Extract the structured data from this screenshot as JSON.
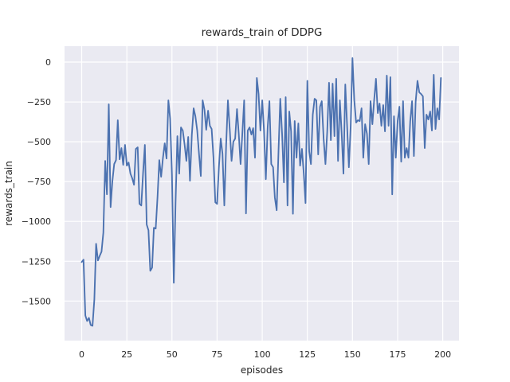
{
  "figure": {
    "title": "rewards_train of DDPG",
    "xlabel": "episodes",
    "ylabel": "rewards_train"
  },
  "colors": {
    "line": "#4C72B0",
    "axes_background": "#EAEAF2",
    "grid": "#FFFFFF",
    "figure_background": "#FFFFFF",
    "text": "#262626"
  },
  "chart_data": {
    "type": "line",
    "title": "rewards_train of DDPG",
    "xlabel": "episodes",
    "ylabel": "rewards_train",
    "legend": "none",
    "grid": true,
    "xlim": [
      -9.5,
      209
    ],
    "ylim": [
      -1748,
      100
    ],
    "x_start": 0,
    "x_step": 1,
    "xticks": {
      "values": [
        0,
        25,
        50,
        75,
        100,
        125,
        150,
        175,
        200
      ],
      "labels": [
        "0",
        "25",
        "50",
        "75",
        "100",
        "125",
        "150",
        "175",
        "200"
      ]
    },
    "yticks": {
      "values": [
        0,
        -250,
        -500,
        -750,
        -1000,
        -1250,
        -1500
      ],
      "labels": [
        "0",
        "−250",
        "−500",
        "−750",
        "−1000",
        "−1250",
        "−1500"
      ]
    },
    "values": [
      -1255,
      -1240,
      -1590,
      -1625,
      -1605,
      -1650,
      -1655,
      -1490,
      -1140,
      -1245,
      -1215,
      -1190,
      -1070,
      -620,
      -830,
      -265,
      -910,
      -750,
      -640,
      -615,
      -365,
      -610,
      -540,
      -645,
      -520,
      -650,
      -630,
      -700,
      -730,
      -770,
      -545,
      -535,
      -890,
      -900,
      -700,
      -520,
      -1020,
      -1055,
      -1310,
      -1290,
      -1040,
      -1045,
      -845,
      -615,
      -720,
      -600,
      -510,
      -605,
      -240,
      -355,
      -710,
      -1385,
      -885,
      -465,
      -700,
      -410,
      -430,
      -520,
      -620,
      -470,
      -745,
      -460,
      -290,
      -340,
      -430,
      -580,
      -715,
      -240,
      -300,
      -425,
      -305,
      -400,
      -420,
      -600,
      -880,
      -890,
      -660,
      -480,
      -575,
      -900,
      -520,
      -240,
      -420,
      -620,
      -500,
      -480,
      -295,
      -450,
      -640,
      -450,
      -240,
      -950,
      -430,
      -410,
      -455,
      -415,
      -600,
      -100,
      -200,
      -430,
      -240,
      -430,
      -735,
      -410,
      -245,
      -640,
      -660,
      -850,
      -930,
      -560,
      -230,
      -450,
      -755,
      -220,
      -900,
      -310,
      -435,
      -952,
      -370,
      -600,
      -385,
      -650,
      -545,
      -700,
      -885,
      -118,
      -560,
      -640,
      -330,
      -230,
      -240,
      -580,
      -280,
      -245,
      -480,
      -640,
      -440,
      -130,
      -490,
      -135,
      -465,
      -105,
      -620,
      -240,
      -440,
      -700,
      -140,
      -390,
      -660,
      -400,
      25,
      -240,
      -380,
      -365,
      -370,
      -290,
      -600,
      -390,
      -450,
      -640,
      -245,
      -390,
      -240,
      -105,
      -320,
      -260,
      -400,
      -270,
      -435,
      -85,
      -400,
      -95,
      -830,
      -340,
      -600,
      -370,
      -280,
      -625,
      -245,
      -600,
      -540,
      -600,
      -370,
      -245,
      -590,
      -250,
      -118,
      -190,
      -200,
      -215,
      -540,
      -330,
      -360,
      -310,
      -430,
      -80,
      -420,
      -290,
      -360,
      -100
    ]
  }
}
